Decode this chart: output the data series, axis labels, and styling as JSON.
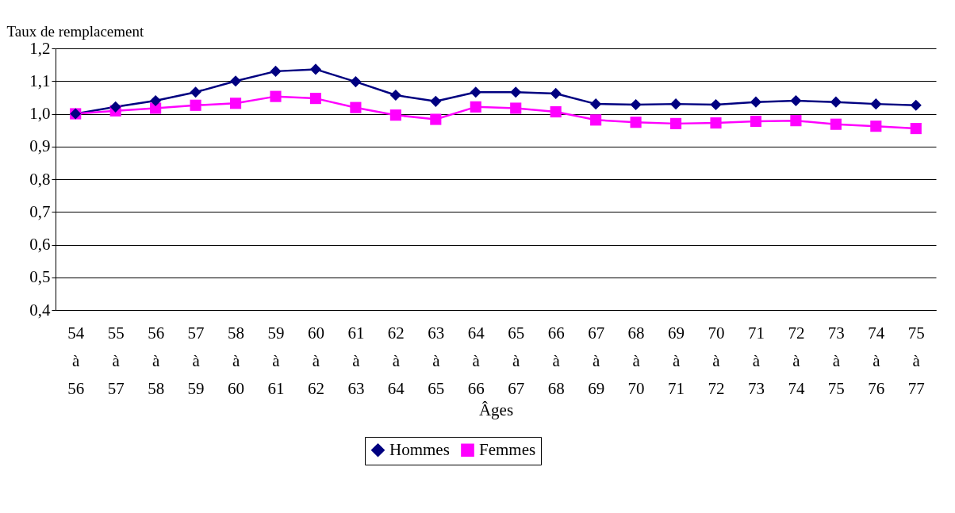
{
  "chart_data": {
    "type": "line",
    "ylabel": "Taux de remplacement",
    "xlabel": "Âges",
    "categories": [
      "54 à 56",
      "55 à 57",
      "56 à 58",
      "57 à 59",
      "58 à 60",
      "59 à 61",
      "60 à 62",
      "61 à 63",
      "62 à 64",
      "63 à 65",
      "64 à 66",
      "65 à 67",
      "66 à 68",
      "67 à 69",
      "68 à 70",
      "69 à 71",
      "70 à 72",
      "71 à 73",
      "72 à 74",
      "73 à 75",
      "74 à 76",
      "75 à 77"
    ],
    "series": [
      {
        "name": "Hommes",
        "color": "#000080",
        "marker": "diamond",
        "values": [
          1.0,
          1.021,
          1.04,
          1.066,
          1.1,
          1.13,
          1.136,
          1.098,
          1.057,
          1.038,
          1.066,
          1.066,
          1.062,
          1.03,
          1.028,
          1.03,
          1.028,
          1.036,
          1.04,
          1.036,
          1.03,
          1.026
        ]
      },
      {
        "name": "Femmes",
        "color": "#ff00ff",
        "marker": "square",
        "values": [
          1.0,
          1.009,
          1.017,
          1.026,
          1.032,
          1.053,
          1.047,
          1.019,
          0.996,
          0.983,
          1.021,
          1.017,
          1.006,
          0.981,
          0.974,
          0.97,
          0.972,
          0.977,
          0.979,
          0.968,
          0.962,
          0.955
        ]
      }
    ],
    "ylim": [
      0.4,
      1.2
    ],
    "yticks": [
      {
        "value": 0.4,
        "label": "0,4"
      },
      {
        "value": 0.5,
        "label": "0,5"
      },
      {
        "value": 0.6,
        "label": "0,6"
      },
      {
        "value": 0.7,
        "label": "0,7"
      },
      {
        "value": 0.8,
        "label": "0,8"
      },
      {
        "value": 0.9,
        "label": "0,9"
      },
      {
        "value": 1.0,
        "label": "1,0"
      },
      {
        "value": 1.1,
        "label": "1,1"
      },
      {
        "value": 1.2,
        "label": "1,2"
      }
    ],
    "grid": "y",
    "legend": "bottom",
    "line_style": "solid"
  }
}
